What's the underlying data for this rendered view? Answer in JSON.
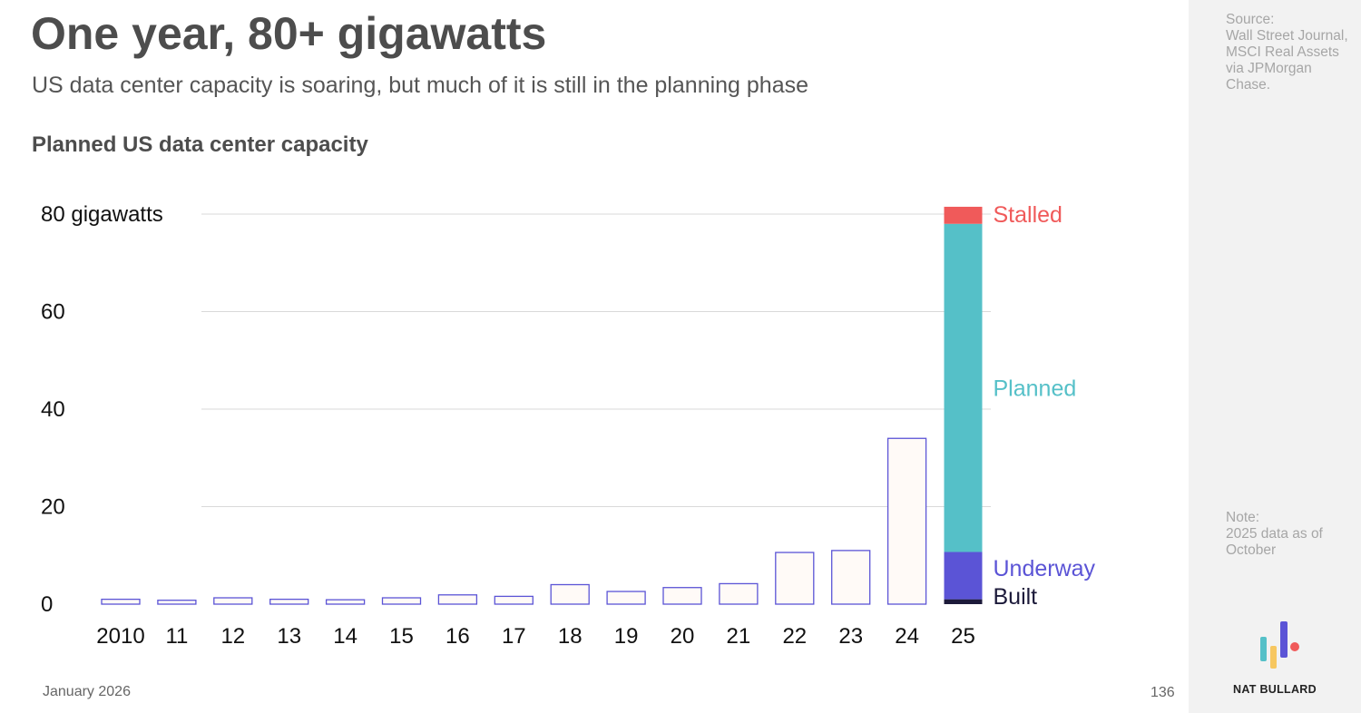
{
  "header": {
    "title": "One year, 80+ gigawatts",
    "subtitle": "US data center capacity is soaring, but much of it is still in the planning phase",
    "chart_title": "Planned US data center capacity"
  },
  "footer": {
    "date": "January 2026",
    "page_number": "136"
  },
  "side_panel": {
    "source": "Source:\nWall Street Journal, MSCI Real Assets via JPMorgan Chase.",
    "note": "Note:\n2025 data as of October",
    "brand": "NAT BULLARD"
  },
  "colors": {
    "bar_outline": "#5b54d6",
    "bar_fill": "#fffaf7",
    "built": "#1c1a3a",
    "underway": "#5b54d6",
    "planned": "#55c0c8",
    "stalled": "#f05a5a",
    "grid": "#d9d9d9"
  },
  "chart_data": {
    "type": "bar",
    "title": "Planned US data center capacity",
    "ylabel": "",
    "xlabel": "",
    "ylim": [
      0,
      80
    ],
    "yticks": [
      {
        "value": 0,
        "label": "0"
      },
      {
        "value": 20,
        "label": "20"
      },
      {
        "value": 40,
        "label": "40"
      },
      {
        "value": 60,
        "label": "60"
      },
      {
        "value": 80,
        "label": "80 gigawatts"
      }
    ],
    "grid": true,
    "categories": [
      "2010",
      "11",
      "12",
      "13",
      "14",
      "15",
      "16",
      "17",
      "18",
      "19",
      "20",
      "21",
      "22",
      "23",
      "24",
      "25"
    ],
    "values": [
      1.0,
      0.8,
      1.3,
      1.0,
      0.9,
      1.3,
      1.9,
      1.6,
      4.0,
      2.6,
      3.4,
      4.2,
      10.6,
      11.0,
      34.0,
      null
    ],
    "stacked_2025": {
      "category": "25",
      "segments": [
        {
          "name": "Built",
          "value": 1.0,
          "color_key": "built"
        },
        {
          "name": "Underway",
          "value": 9.7,
          "color_key": "underway"
        },
        {
          "name": "Planned",
          "value": 67.3,
          "color_key": "planned"
        },
        {
          "name": "Stalled",
          "value": 3.5,
          "color_key": "stalled"
        }
      ]
    }
  }
}
